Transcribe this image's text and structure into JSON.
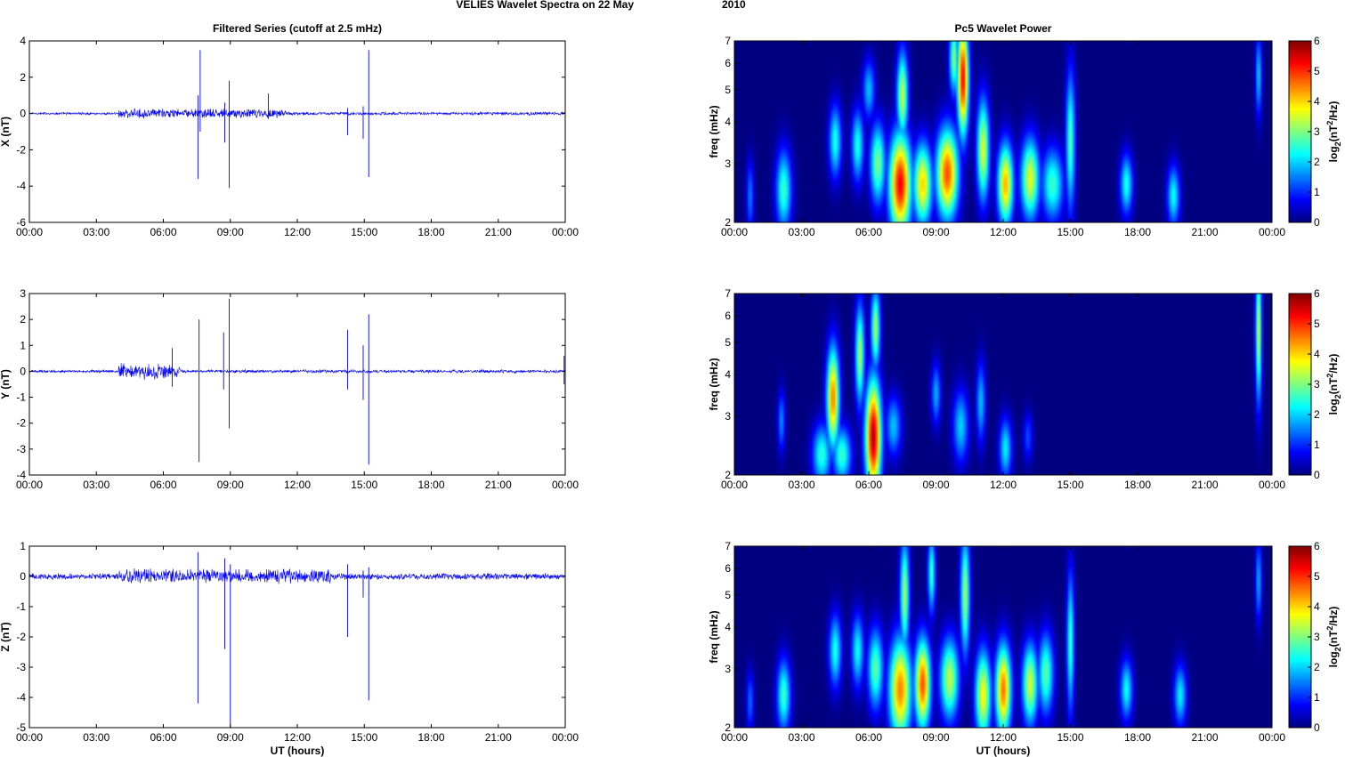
{
  "figure": {
    "suptitle_left": "VELIES Wavelet Spectra on 22 May",
    "suptitle_right": "2010",
    "left_title": "Filtered Series (cutoff at 2.5 mHz)",
    "right_title": "Pc5 Wavelet Power",
    "x_label": "UT (hours)",
    "x_ticks": [
      "00:00",
      "03:00",
      "06:00",
      "09:00",
      "12:00",
      "15:00",
      "18:00",
      "21:00",
      "00:00"
    ],
    "x_range_hours": [
      0,
      24
    ],
    "line_color": "#0000ff",
    "colormap": "jet"
  },
  "chart_data": [
    {
      "type": "line",
      "component": "X",
      "ylabel": "X (nT)",
      "ylim": [
        -6,
        4
      ],
      "y_ticks": [
        "4",
        "2",
        "0",
        "-2",
        "-4",
        "-6"
      ],
      "y_tick_values": [
        4,
        2,
        0,
        -2,
        -4,
        -6
      ],
      "noise_amplitude": [
        {
          "from": 0,
          "to": 4,
          "amp": 0.08
        },
        {
          "from": 4,
          "to": 11.5,
          "amp": 0.3
        },
        {
          "from": 11.5,
          "to": 24,
          "amp": 0.1
        }
      ],
      "spikes": [
        {
          "t": 7.55,
          "min": -3.6,
          "max": 1.0
        },
        {
          "t": 7.65,
          "min": -1.0,
          "max": 3.5
        },
        {
          "t": 8.75,
          "min": -1.6,
          "max": 0.6
        },
        {
          "t": 8.95,
          "min": -4.1,
          "max": 1.8
        },
        {
          "t": 10.7,
          "min": -0.3,
          "max": 1.1
        },
        {
          "t": 14.25,
          "min": -1.2,
          "max": 0.3
        },
        {
          "t": 14.95,
          "min": -1.4,
          "max": 0.4
        },
        {
          "t": 15.2,
          "min": -3.5,
          "max": 3.5
        }
      ]
    },
    {
      "type": "line",
      "component": "Y",
      "ylabel": "Y (nT)",
      "ylim": [
        -4,
        3
      ],
      "y_ticks": [
        "3",
        "2",
        "1",
        "0",
        "-1",
        "-2",
        "-3",
        "-4"
      ],
      "y_tick_values": [
        3,
        2,
        1,
        0,
        -1,
        -2,
        -3,
        -4
      ],
      "noise_amplitude": [
        {
          "from": 0,
          "to": 4,
          "amp": 0.06
        },
        {
          "from": 4,
          "to": 6.8,
          "amp": 0.35
        },
        {
          "from": 6.8,
          "to": 24,
          "amp": 0.07
        }
      ],
      "spikes": [
        {
          "t": 6.4,
          "min": -0.6,
          "max": 0.9
        },
        {
          "t": 7.6,
          "min": -3.5,
          "max": 2.0
        },
        {
          "t": 8.7,
          "min": -0.7,
          "max": 1.5
        },
        {
          "t": 8.95,
          "min": -2.2,
          "max": 2.8
        },
        {
          "t": 14.25,
          "min": -0.7,
          "max": 1.6
        },
        {
          "t": 14.95,
          "min": -1.1,
          "max": 1.0
        },
        {
          "t": 15.2,
          "min": -3.6,
          "max": 2.2
        },
        {
          "t": 23.95,
          "min": -0.5,
          "max": 0.6
        }
      ]
    },
    {
      "type": "line",
      "component": "Z",
      "ylabel": "Z (nT)",
      "ylim": [
        -5,
        1
      ],
      "y_ticks": [
        "1",
        "0",
        "-1",
        "-2",
        "-3",
        "-4",
        "-5"
      ],
      "y_tick_values": [
        1,
        0,
        -1,
        -2,
        -3,
        -4,
        -5
      ],
      "noise_amplitude": [
        {
          "from": 0,
          "to": 4,
          "amp": 0.12
        },
        {
          "from": 4,
          "to": 13.5,
          "amp": 0.28
        },
        {
          "from": 13.5,
          "to": 24,
          "amp": 0.12
        }
      ],
      "spikes": [
        {
          "t": 7.55,
          "min": -4.2,
          "max": 0.8
        },
        {
          "t": 8.75,
          "min": -2.4,
          "max": 0.6
        },
        {
          "t": 9.0,
          "min": -5.0,
          "max": 0.4
        },
        {
          "t": 14.25,
          "min": -2.0,
          "max": 0.4
        },
        {
          "t": 14.95,
          "min": -0.7,
          "max": 0.2
        },
        {
          "t": 15.2,
          "min": -4.1,
          "max": 0.3
        }
      ]
    },
    {
      "type": "heatmap",
      "component": "X",
      "ylabel": "freq (mHz)",
      "y_scale": "log",
      "ylim": [
        2,
        7
      ],
      "y_ticks": [
        "7",
        "6",
        "5",
        "4",
        "3",
        "2"
      ],
      "y_tick_values": [
        7,
        6,
        5,
        4,
        3,
        2
      ],
      "colorbar": {
        "label_main": "log",
        "label_sub": "2",
        "label_paren": "(nT",
        "label_sup": "2",
        "label_end": "/Hz)",
        "range": [
          0,
          6
        ],
        "ticks": [
          "6",
          "5",
          "4",
          "3",
          "2",
          "1",
          "0"
        ]
      },
      "blobs": [
        {
          "t": 0.7,
          "f": 2.4,
          "w": 0.12,
          "h": 0.18,
          "v": 1.5
        },
        {
          "t": 2.2,
          "f": 2.5,
          "w": 0.25,
          "h": 0.2,
          "v": 2.6
        },
        {
          "t": 4.5,
          "f": 3.5,
          "w": 0.2,
          "h": 0.18,
          "v": 2.4
        },
        {
          "t": 5.5,
          "f": 3.4,
          "w": 0.2,
          "h": 0.18,
          "v": 2.4
        },
        {
          "t": 6.0,
          "f": 5.0,
          "w": 0.2,
          "h": 0.15,
          "v": 1.9
        },
        {
          "t": 6.4,
          "f": 3.0,
          "w": 0.25,
          "h": 0.2,
          "v": 3.0
        },
        {
          "t": 7.4,
          "f": 2.6,
          "w": 0.35,
          "h": 0.25,
          "v": 5.3
        },
        {
          "t": 7.5,
          "f": 4.8,
          "w": 0.18,
          "h": 0.22,
          "v": 3.4
        },
        {
          "t": 8.4,
          "f": 2.6,
          "w": 0.3,
          "h": 0.2,
          "v": 4.0
        },
        {
          "t": 9.5,
          "f": 2.8,
          "w": 0.35,
          "h": 0.22,
          "v": 4.8
        },
        {
          "t": 10.2,
          "f": 5.4,
          "w": 0.18,
          "h": 0.28,
          "v": 5.3
        },
        {
          "t": 9.8,
          "f": 6.2,
          "w": 0.15,
          "h": 0.18,
          "v": 3.0
        },
        {
          "t": 11.1,
          "f": 3.3,
          "w": 0.2,
          "h": 0.25,
          "v": 3.6
        },
        {
          "t": 12.1,
          "f": 2.6,
          "w": 0.25,
          "h": 0.2,
          "v": 4.2
        },
        {
          "t": 13.2,
          "f": 2.7,
          "w": 0.3,
          "h": 0.2,
          "v": 3.6
        },
        {
          "t": 14.2,
          "f": 2.6,
          "w": 0.35,
          "h": 0.18,
          "v": 2.6
        },
        {
          "t": 15.0,
          "f": 3.5,
          "w": 0.15,
          "h": 0.35,
          "v": 2.7
        },
        {
          "t": 17.5,
          "f": 2.6,
          "w": 0.2,
          "h": 0.15,
          "v": 2.4
        },
        {
          "t": 19.6,
          "f": 2.4,
          "w": 0.2,
          "h": 0.15,
          "v": 2.3
        },
        {
          "t": 23.4,
          "f": 5.5,
          "w": 0.1,
          "h": 0.2,
          "v": 2.0
        }
      ]
    },
    {
      "type": "heatmap",
      "component": "Y",
      "ylabel": "freq (mHz)",
      "y_scale": "log",
      "ylim": [
        2,
        7
      ],
      "y_ticks": [
        "7",
        "6",
        "5",
        "4",
        "3",
        "2"
      ],
      "y_tick_values": [
        7,
        6,
        5,
        4,
        3,
        2
      ],
      "colorbar": {
        "label_main": "log",
        "label_sub": "2",
        "label_paren": "(nT",
        "label_sup": "2",
        "label_end": "/Hz)",
        "range": [
          0,
          6
        ],
        "ticks": [
          "6",
          "5",
          "4",
          "3",
          "2",
          "1",
          "0"
        ]
      },
      "blobs": [
        {
          "t": 2.1,
          "f": 2.9,
          "w": 0.12,
          "h": 0.15,
          "v": 1.6
        },
        {
          "t": 3.9,
          "f": 2.3,
          "w": 0.3,
          "h": 0.15,
          "v": 2.5
        },
        {
          "t": 4.4,
          "f": 3.4,
          "w": 0.2,
          "h": 0.25,
          "v": 4.5
        },
        {
          "t": 4.8,
          "f": 2.3,
          "w": 0.3,
          "h": 0.14,
          "v": 2.6
        },
        {
          "t": 5.6,
          "f": 4.6,
          "w": 0.15,
          "h": 0.25,
          "v": 3.2
        },
        {
          "t": 6.2,
          "f": 2.6,
          "w": 0.25,
          "h": 0.28,
          "v": 5.7
        },
        {
          "t": 6.3,
          "f": 5.5,
          "w": 0.15,
          "h": 0.2,
          "v": 3.2
        },
        {
          "t": 7.1,
          "f": 2.8,
          "w": 0.25,
          "h": 0.15,
          "v": 1.9
        },
        {
          "t": 9.0,
          "f": 3.5,
          "w": 0.15,
          "h": 0.15,
          "v": 1.8
        },
        {
          "t": 10.1,
          "f": 2.8,
          "w": 0.25,
          "h": 0.18,
          "v": 2.0
        },
        {
          "t": 11.0,
          "f": 3.3,
          "w": 0.15,
          "h": 0.2,
          "v": 1.9
        },
        {
          "t": 12.1,
          "f": 2.4,
          "w": 0.2,
          "h": 0.15,
          "v": 2.2
        },
        {
          "t": 13.1,
          "f": 2.6,
          "w": 0.15,
          "h": 0.12,
          "v": 1.2
        },
        {
          "t": 23.4,
          "f": 5.4,
          "w": 0.1,
          "h": 0.35,
          "v": 3.4
        }
      ]
    },
    {
      "type": "heatmap",
      "component": "Z",
      "ylabel": "freq (mHz)",
      "y_scale": "log",
      "ylim": [
        2,
        7
      ],
      "y_ticks": [
        "7",
        "6",
        "5",
        "4",
        "3",
        "2"
      ],
      "y_tick_values": [
        7,
        6,
        5,
        4,
        3,
        2
      ],
      "colorbar": {
        "label_main": "log",
        "label_sub": "2",
        "label_paren": "(nT",
        "label_sup": "2",
        "label_end": "/Hz)",
        "range": [
          0,
          6
        ],
        "ticks": [
          "6",
          "5",
          "4",
          "3",
          "2",
          "1",
          "0"
        ]
      },
      "blobs": [
        {
          "t": 0.7,
          "f": 2.4,
          "w": 0.12,
          "h": 0.15,
          "v": 1.4
        },
        {
          "t": 2.2,
          "f": 2.5,
          "w": 0.22,
          "h": 0.18,
          "v": 2.6
        },
        {
          "t": 4.5,
          "f": 3.4,
          "w": 0.2,
          "h": 0.18,
          "v": 2.4
        },
        {
          "t": 5.5,
          "f": 3.4,
          "w": 0.2,
          "h": 0.18,
          "v": 2.3
        },
        {
          "t": 6.3,
          "f": 3.0,
          "w": 0.25,
          "h": 0.2,
          "v": 2.8
        },
        {
          "t": 7.4,
          "f": 2.6,
          "w": 0.35,
          "h": 0.25,
          "v": 4.5
        },
        {
          "t": 7.6,
          "f": 5.0,
          "w": 0.15,
          "h": 0.28,
          "v": 3.2
        },
        {
          "t": 8.4,
          "f": 2.7,
          "w": 0.25,
          "h": 0.22,
          "v": 4.8
        },
        {
          "t": 8.8,
          "f": 5.8,
          "w": 0.12,
          "h": 0.2,
          "v": 2.6
        },
        {
          "t": 9.6,
          "f": 2.8,
          "w": 0.3,
          "h": 0.2,
          "v": 3.4
        },
        {
          "t": 10.3,
          "f": 5.0,
          "w": 0.15,
          "h": 0.3,
          "v": 3.2
        },
        {
          "t": 11.1,
          "f": 2.5,
          "w": 0.25,
          "h": 0.22,
          "v": 3.8
        },
        {
          "t": 12.0,
          "f": 2.6,
          "w": 0.25,
          "h": 0.22,
          "v": 4.6
        },
        {
          "t": 13.2,
          "f": 2.7,
          "w": 0.25,
          "h": 0.2,
          "v": 3.5
        },
        {
          "t": 13.9,
          "f": 2.9,
          "w": 0.25,
          "h": 0.2,
          "v": 2.8
        },
        {
          "t": 15.0,
          "f": 3.6,
          "w": 0.12,
          "h": 0.35,
          "v": 2.6
        },
        {
          "t": 17.5,
          "f": 2.6,
          "w": 0.2,
          "h": 0.15,
          "v": 2.3
        },
        {
          "t": 19.9,
          "f": 2.5,
          "w": 0.2,
          "h": 0.15,
          "v": 2.2
        },
        {
          "t": 23.4,
          "f": 5.5,
          "w": 0.1,
          "h": 0.2,
          "v": 1.8
        }
      ]
    }
  ]
}
